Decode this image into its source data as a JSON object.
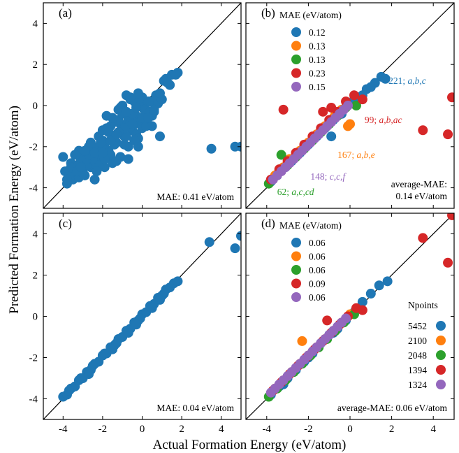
{
  "figure": {
    "xlabel": "Actual Formation Energy (eV/atom)",
    "ylabel": "Predicted Formation Energy (eV/atom)",
    "xlim": [
      -5,
      5
    ],
    "ylim": [
      -5,
      5
    ],
    "xticks": [
      -4,
      -2,
      0,
      2,
      4
    ],
    "yticks": [
      -4,
      -2,
      0,
      2,
      4
    ],
    "xtick_labels": [
      "-4",
      "-2",
      "0",
      "2",
      "4"
    ],
    "ytick_labels": [
      "-4",
      "-2",
      "0",
      "2",
      "4"
    ]
  },
  "colors": {
    "blue": "#1f77b4",
    "orange": "#ff7f0e",
    "green": "#2ca02c",
    "red": "#d62728",
    "purple": "#9467bd"
  },
  "chart_data": [
    {
      "panel": "(a)",
      "type": "scatter",
      "note": "MAE: 0.41 eV/atom",
      "identity_line": true,
      "xlim": [
        -5,
        5
      ],
      "ylim": [
        -5,
        5
      ],
      "series": [
        {
          "color": "#1f77b4",
          "x": [
            -4.0,
            -3.8,
            -3.6,
            -3.5,
            -3.3,
            -3.2,
            -3.0,
            -2.9,
            -2.8,
            -2.6,
            -2.5,
            -2.4,
            -2.2,
            -2.1,
            -2.0,
            -1.9,
            -1.8,
            -1.7,
            -1.6,
            -1.5,
            -1.4,
            -1.3,
            -1.2,
            -1.1,
            -1.0,
            -0.9,
            -0.8,
            -0.7,
            -0.6,
            -0.5,
            -0.4,
            -0.3,
            -0.2,
            -0.1,
            0.0,
            0.1,
            0.2,
            0.3,
            0.5,
            0.7,
            0.9,
            1.2,
            1.5,
            1.8,
            -3.9,
            -3.5,
            -3.1,
            -2.7,
            -2.3,
            -1.9,
            -1.5,
            -1.1,
            -0.7,
            -0.3,
            0.1,
            0.4,
            -3.7,
            -3.2,
            -2.8,
            -2.4,
            -2.0,
            -1.6,
            -1.2,
            -0.8,
            -0.4,
            0.0,
            0.4,
            -2.2,
            -1.8,
            -1.4,
            -1.0,
            -0.6,
            -0.2,
            0.3,
            0.8,
            -2.6,
            -3.0,
            -1.3,
            -0.9,
            -0.5,
            -0.1,
            0.6,
            1.0,
            1.4,
            -3.4,
            -2.5,
            -1.7,
            -0.9,
            -3.6,
            -3.0,
            -2.0,
            -1.2,
            -0.3,
            0.2,
            0.9,
            1.7,
            -2.8,
            -2.3,
            -1.5,
            -0.7,
            -0.2,
            0.6,
            -3.8,
            -3.3,
            -2.7,
            -2.1,
            -1.4,
            -0.6,
            0.0,
            1.1,
            3.5,
            4.7,
            5.0,
            -3.1,
            -2.4,
            -1.9,
            -1.1,
            -0.4,
            0.5,
            -2.9,
            -1.6,
            -0.8,
            0.3,
            1.3,
            -2.0,
            -1.3,
            -0.5
          ],
          "y": [
            -2.5,
            -3.8,
            -2.8,
            -3.6,
            -2.9,
            -3.5,
            -2.5,
            -3.4,
            -2.2,
            -3.0,
            -2.0,
            -3.6,
            -1.5,
            -2.5,
            -1.2,
            -3.0,
            -0.5,
            -2.2,
            -1.0,
            -2.8,
            -0.8,
            -1.8,
            -0.2,
            -2.5,
            0.0,
            -1.5,
            0.5,
            -2.0,
            0.3,
            -1.2,
            0.2,
            -0.5,
            -2.0,
            0.0,
            0.4,
            -0.8,
            -0.2,
            0.2,
            -0.5,
            0.5,
            -1.5,
            1.3,
            1.5,
            1.6,
            -3.2,
            -3.0,
            -2.6,
            -2.0,
            -2.8,
            -1.9,
            -1.5,
            -0.9,
            -0.7,
            -1.4,
            -0.2,
            0.2,
            -3.4,
            -2.2,
            -2.9,
            -2.1,
            -1.7,
            -2.4,
            -0.7,
            -1.5,
            -0.9,
            -1.1,
            -0.3,
            -2.9,
            -1.1,
            -1.9,
            -0.4,
            -0.9,
            -1.6,
            -0.6,
            0.1,
            -1.8,
            -3.1,
            -2.7,
            -1.9,
            -0.4,
            -0.8,
            -0.3,
            0.3,
            1.0,
            -2.4,
            -2.6,
            -1.3,
            -1.1,
            -3.0,
            -3.3,
            -2.1,
            -1.3,
            -0.1,
            -1.0,
            0.6,
            1.5,
            -2.6,
            -3.2,
            -0.6,
            -2.6,
            0.6,
            -0.2,
            -3.6,
            -3.2,
            -2.4,
            -1.8,
            -1.6,
            0.4,
            -0.6,
            1.2,
            -2.1,
            -2.0,
            -2.0,
            -3.0,
            -2.3,
            -2.6,
            -0.1,
            -1.7,
            -1.0,
            -2.2,
            -1.7,
            -0.3,
            -0.6,
            1.1,
            -2.3,
            -1.4,
            -0.9
          ]
        }
      ]
    },
    {
      "panel": "(b)",
      "type": "scatter",
      "legend_title": "MAE (eV/atom)",
      "legend_loc": "top-left",
      "note_line1": "average-MAE:",
      "note_line2": "0.14 eV/atom",
      "identity_line": true,
      "xlim": [
        -5,
        5
      ],
      "ylim": [
        -5,
        5
      ],
      "series": [
        {
          "name": "0.12",
          "color": "#1f77b4",
          "x": [
            -3.8,
            -3.5,
            -3.1,
            -2.8,
            -2.4,
            -2.0,
            -1.6,
            -1.2,
            -0.8,
            -0.4,
            0.0,
            0.4,
            0.8,
            1.2,
            1.5,
            1.7,
            0.2,
            -1.0,
            -2.2,
            -3.3,
            0.6,
            1.0,
            -0.6,
            -1.8,
            -0.9
          ],
          "y": [
            -3.7,
            -3.4,
            -3.0,
            -2.7,
            -2.3,
            -1.9,
            -1.5,
            -1.1,
            -0.7,
            -0.4,
            0.1,
            0.4,
            0.8,
            1.1,
            1.4,
            1.3,
            0.3,
            -0.9,
            -2.0,
            -3.1,
            0.5,
            0.9,
            -0.5,
            -1.6,
            -1.5
          ]
        },
        {
          "name": "0.13",
          "color": "#ff7f0e",
          "x": [
            -3.6,
            -3.2,
            -2.8,
            -2.4,
            -2.0,
            -1.6,
            -1.2,
            -0.8,
            -0.4,
            0.0,
            -0.7,
            -0.1,
            -2.9
          ],
          "y": [
            -3.4,
            -3.0,
            -2.6,
            -2.2,
            -1.8,
            -1.4,
            -1.0,
            -0.6,
            -0.2,
            -0.9,
            -0.4,
            -1.0,
            -2.6
          ]
        },
        {
          "name": "0.13",
          "color": "#2ca02c",
          "x": [
            -3.9,
            -3.4,
            -3.0,
            -2.6,
            -2.2,
            -1.8,
            -1.4,
            -1.0,
            -0.6,
            -0.2,
            0.3,
            -3.3
          ],
          "y": [
            -3.8,
            -3.2,
            -2.9,
            -2.5,
            -2.1,
            -1.7,
            -1.3,
            -0.9,
            -0.5,
            -0.1,
            0.0,
            -2.4
          ]
        },
        {
          "name": "0.23",
          "color": "#d62728",
          "x": [
            -3.8,
            -3.4,
            -3.0,
            -2.6,
            -2.2,
            -1.8,
            -1.4,
            -1.0,
            -0.6,
            -0.2,
            0.2,
            0.6,
            -1.3,
            -0.9,
            4.9,
            4.7,
            3.5,
            -3.2
          ],
          "y": [
            -3.6,
            -3.1,
            -2.7,
            -2.3,
            -1.9,
            -1.5,
            -1.1,
            -0.7,
            -0.3,
            0.2,
            0.5,
            0.3,
            -0.3,
            -0.1,
            0.4,
            -1.4,
            -1.2,
            -0.2
          ]
        },
        {
          "name": "0.15",
          "color": "#9467bd",
          "x": [
            -3.7,
            -3.3,
            -2.9,
            -2.5,
            -2.1,
            -1.7,
            -1.3,
            -0.9,
            -0.5,
            -0.1,
            -3.5,
            -3.1,
            -2.7,
            -2.3,
            -1.9,
            -1.5,
            -1.1,
            -0.7,
            -0.3
          ],
          "y": [
            -3.6,
            -3.2,
            -2.8,
            -2.4,
            -2.0,
            -1.6,
            -1.2,
            -0.8,
            -0.4,
            0.0,
            -3.4,
            -3.0,
            -2.6,
            -2.2,
            -1.8,
            -1.4,
            -1.0,
            -0.6,
            -0.2
          ]
        }
      ],
      "annotations": [
        {
          "text": "221; ",
          "italic": "a,b,c",
          "color": "#1f77b4",
          "x": 1.85,
          "y": 1.05
        },
        {
          "text": "99; ",
          "italic": "a,b,ac",
          "color": "#d62728",
          "x": 0.7,
          "y": -0.85
        },
        {
          "text": "167; ",
          "italic": "a,b,e",
          "color": "#ff7f0e",
          "x": -0.6,
          "y": -2.55
        },
        {
          "text": "148; ",
          "italic": "c,c,f",
          "color": "#9467bd",
          "x": -1.9,
          "y": -3.6
        },
        {
          "text": "62; ",
          "italic": "a,c,cd",
          "color": "#2ca02c",
          "x": -3.5,
          "y": -4.35
        }
      ]
    },
    {
      "panel": "(c)",
      "type": "scatter",
      "note": "MAE: 0.04 eV/atom",
      "identity_line": true,
      "xlim": [
        -5,
        5
      ],
      "ylim": [
        -5,
        5
      ],
      "series": [
        {
          "color": "#1f77b4",
          "x": [
            -4.0,
            -3.8,
            -3.6,
            -3.4,
            -3.2,
            -3.0,
            -2.8,
            -2.6,
            -2.4,
            -2.2,
            -2.0,
            -1.8,
            -1.6,
            -1.4,
            -1.2,
            -1.0,
            -0.8,
            -0.6,
            -0.4,
            -0.2,
            0.0,
            0.2,
            0.4,
            0.6,
            0.8,
            1.0,
            1.2,
            1.4,
            1.6,
            1.8,
            -3.7,
            -3.1,
            -2.5,
            -1.9,
            -1.3,
            -0.7,
            -0.1,
            0.5,
            1.1,
            3.4,
            4.7,
            5.0,
            -2.7,
            -1.5,
            -0.3,
            0.9
          ],
          "y": [
            -3.9,
            -3.8,
            -3.5,
            -3.4,
            -3.1,
            -3.0,
            -2.7,
            -2.6,
            -2.3,
            -2.2,
            -1.9,
            -1.8,
            -1.5,
            -1.4,
            -1.1,
            -1.0,
            -0.7,
            -0.6,
            -0.3,
            -0.2,
            0.1,
            0.2,
            0.5,
            0.6,
            0.9,
            1.0,
            1.3,
            1.4,
            1.6,
            1.7,
            -3.6,
            -3.0,
            -2.4,
            -1.8,
            -1.3,
            -0.8,
            -0.1,
            0.4,
            1.1,
            3.6,
            3.3,
            3.9,
            -2.8,
            -1.6,
            -0.4,
            0.8
          ]
        }
      ]
    },
    {
      "panel": "(d)",
      "type": "scatter",
      "legend_title": "MAE (eV/atom)",
      "legend_loc": "top-left",
      "legend2_title": "Npoints",
      "legend2_loc": "right",
      "note": "average-MAE: 0.06 eV/atom",
      "identity_line": true,
      "xlim": [
        -5,
        5
      ],
      "ylim": [
        -5,
        5
      ],
      "series": [
        {
          "name": "0.06",
          "npoints": "5452",
          "color": "#1f77b4",
          "x": [
            -3.8,
            -3.4,
            -3.0,
            -2.6,
            -2.2,
            -1.8,
            -1.4,
            -1.0,
            -0.6,
            -0.2,
            0.2,
            0.6,
            1.0,
            1.4,
            1.8,
            -3.2,
            -2.0,
            -0.8,
            0.4
          ],
          "y": [
            -3.8,
            -3.4,
            -3.0,
            -2.6,
            -2.2,
            -1.8,
            -1.3,
            -0.9,
            -0.6,
            -0.2,
            0.2,
            0.7,
            1.1,
            1.5,
            1.7,
            -3.3,
            -2.0,
            -0.8,
            0.4
          ]
        },
        {
          "name": "0.06",
          "npoints": "2100",
          "color": "#ff7f0e",
          "x": [
            -3.6,
            -3.2,
            -2.8,
            -2.4,
            -2.0,
            -1.6,
            -1.2,
            -0.8,
            -0.4,
            0.0,
            -2.3
          ],
          "y": [
            -3.5,
            -3.1,
            -2.7,
            -2.3,
            -1.9,
            -1.5,
            -1.1,
            -0.7,
            -0.3,
            0.1,
            -1.2
          ]
        },
        {
          "name": "0.06",
          "npoints": "2048",
          "color": "#2ca02c",
          "x": [
            -3.9,
            -3.5,
            -3.1,
            -2.7,
            -2.3,
            -1.9,
            -1.5,
            -1.1,
            -0.7,
            -0.3,
            0.2
          ],
          "y": [
            -3.9,
            -3.5,
            -3.1,
            -2.7,
            -2.3,
            -1.9,
            -1.5,
            -1.1,
            -0.7,
            -0.3,
            0.1
          ]
        },
        {
          "name": "0.09",
          "npoints": "1394",
          "color": "#d62728",
          "x": [
            -3.7,
            -3.3,
            -2.9,
            -2.5,
            -2.1,
            -1.7,
            -1.3,
            -0.9,
            -0.5,
            -0.1,
            0.3,
            0.6,
            -1.1,
            4.9,
            3.5,
            4.7
          ],
          "y": [
            -3.6,
            -3.2,
            -2.8,
            -2.4,
            -2.0,
            -1.6,
            -1.2,
            -0.8,
            -0.4,
            0.0,
            0.4,
            0.3,
            -0.2,
            4.9,
            3.8,
            2.6
          ]
        },
        {
          "name": "0.06",
          "npoints": "1324",
          "color": "#9467bd",
          "x": [
            -3.8,
            -3.4,
            -3.0,
            -2.6,
            -2.2,
            -1.8,
            -1.4,
            -1.0,
            -0.6,
            -0.2,
            -3.6,
            -3.2,
            -2.8,
            -2.4,
            -2.0,
            -1.6,
            -1.2,
            -0.8,
            -0.4
          ],
          "y": [
            -3.7,
            -3.3,
            -2.9,
            -2.5,
            -2.1,
            -1.7,
            -1.3,
            -0.9,
            -0.5,
            -0.1,
            -3.5,
            -3.1,
            -2.7,
            -2.3,
            -1.9,
            -1.5,
            -1.1,
            -0.7,
            -0.3
          ]
        }
      ]
    }
  ]
}
